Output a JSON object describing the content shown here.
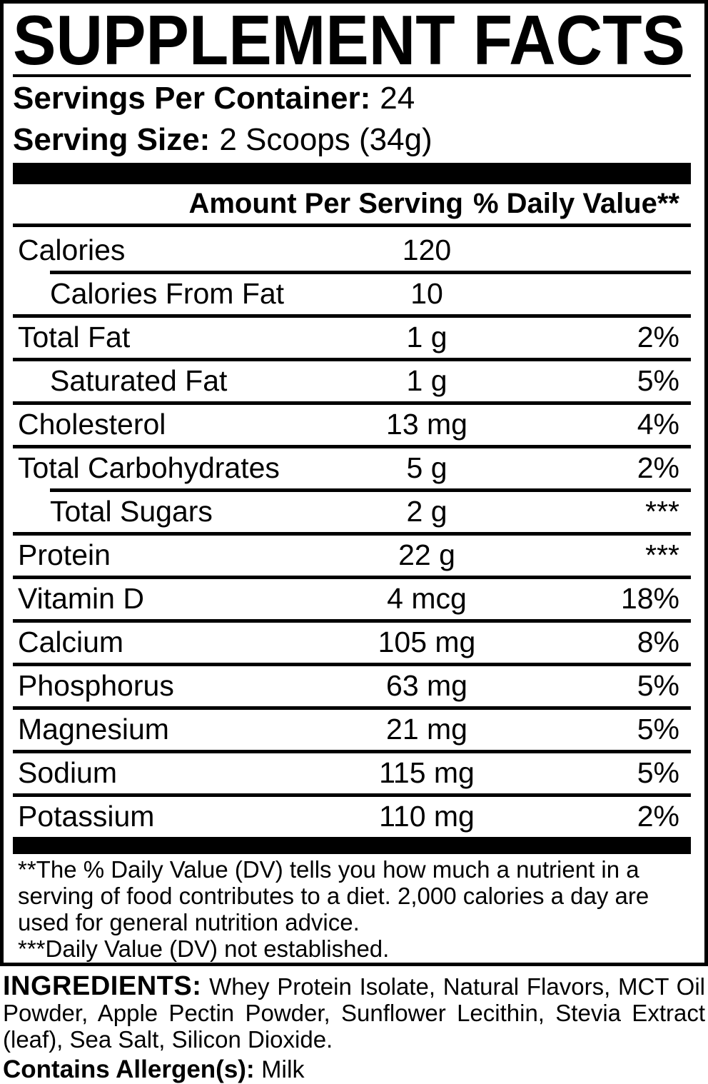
{
  "panel": {
    "title": "SUPPLEMENT FACTS",
    "servings_label": "Servings Per Container:",
    "servings_value": "24",
    "serving_size_label": "Serving Size:",
    "serving_size_value": "2 Scoops (34g)",
    "columns": {
      "amount": "Amount Per Serving",
      "dv": "% Daily Value**"
    },
    "rows": [
      {
        "label": "Calories",
        "amount": "120",
        "dv": "",
        "indent": false,
        "sep": "none"
      },
      {
        "label": "Calories From Fat",
        "amount": "10",
        "dv": "",
        "indent": true,
        "sep": "indent"
      },
      {
        "label": "Total Fat",
        "amount": "1 g",
        "dv": "2%",
        "indent": false,
        "sep": "full"
      },
      {
        "label": "Saturated Fat",
        "amount": "1 g",
        "dv": "5%",
        "indent": true,
        "sep": "full"
      },
      {
        "label": "Cholesterol",
        "amount": "13 mg",
        "dv": "4%",
        "indent": false,
        "sep": "full"
      },
      {
        "label": "Total Carbohydrates",
        "amount": "5 g",
        "dv": "2%",
        "indent": false,
        "sep": "full"
      },
      {
        "label": "Total Sugars",
        "amount": "2 g",
        "dv": "***",
        "indent": true,
        "sep": "indent"
      },
      {
        "label": "Protein",
        "amount": "22 g",
        "dv": "***",
        "indent": false,
        "sep": "full"
      },
      {
        "label": "Vitamin D",
        "amount": "4 mcg",
        "dv": "18%",
        "indent": false,
        "sep": "full"
      },
      {
        "label": "Calcium",
        "amount": "105 mg",
        "dv": "8%",
        "indent": false,
        "sep": "full"
      },
      {
        "label": "Phosphorus",
        "amount": "63 mg",
        "dv": "5%",
        "indent": false,
        "sep": "full"
      },
      {
        "label": "Magnesium",
        "amount": "21 mg",
        "dv": "5%",
        "indent": false,
        "sep": "full"
      },
      {
        "label": "Sodium",
        "amount": "115 mg",
        "dv": "5%",
        "indent": false,
        "sep": "full"
      },
      {
        "label": "Potassium",
        "amount": "110 mg",
        "dv": "2%",
        "indent": false,
        "sep": "full"
      }
    ],
    "footnote_lines": [
      "**The % Daily Value (DV) tells you how much a nutrient in a",
      "serving of food contributes to a diet. 2,000 calories a day are",
      "used for general nutrition advice.",
      "***Daily Value (DV) not established."
    ]
  },
  "ingredients": {
    "label": "INGREDIENTS:",
    "line1_rest": "Whey Protein Isolate, Natural Flavors, MCT Oil",
    "line2": "Powder, Apple Pectin Powder, Sunflower Lecithin, Stevia Extract",
    "line3": "(leaf), Sea Salt, Silicon Dioxide."
  },
  "allergen": {
    "label": "Contains Allergen(s):",
    "value": "Milk"
  },
  "colors": {
    "ink": "#000000",
    "background": "#ffffff"
  }
}
